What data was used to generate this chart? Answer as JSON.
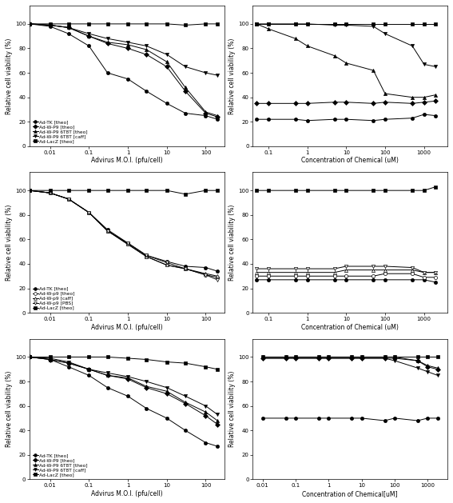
{
  "panel1_left": {
    "xlabel": "Advirus M.O.I. (pfu/cell)",
    "ylabel": "Relative cell viability (%)",
    "xlim": [
      0.003,
      300
    ],
    "ylim": [
      0,
      115
    ],
    "yticks": [
      0,
      20,
      40,
      60,
      80,
      100
    ],
    "xticks": [
      0.01,
      0.1,
      1,
      10,
      100
    ],
    "xticklabels": [
      "0.01",
      "0.1",
      "1",
      "10",
      "100"
    ],
    "series": [
      {
        "label": "Ad-TK [theo]",
        "marker": "o",
        "filled": true,
        "x": [
          0.001,
          0.003,
          0.01,
          0.03,
          0.1,
          0.3,
          1,
          3,
          10,
          30,
          100,
          200
        ],
        "y": [
          100,
          100,
          98,
          92,
          82,
          60,
          55,
          45,
          35,
          27,
          25,
          22
        ]
      },
      {
        "label": "Ad-W-P9 [theo]",
        "marker": "D",
        "filled": true,
        "x": [
          0.001,
          0.003,
          0.01,
          0.03,
          0.1,
          0.3,
          1,
          3,
          10,
          30,
          100,
          200
        ],
        "y": [
          100,
          100,
          99,
          97,
          90,
          84,
          80,
          75,
          65,
          45,
          27,
          24
        ]
      },
      {
        "label": "Ad-W-P9 6T8T [theo]",
        "marker": "^",
        "filled": true,
        "x": [
          0.001,
          0.003,
          0.01,
          0.03,
          0.1,
          0.3,
          1,
          3,
          10,
          30,
          100,
          200
        ],
        "y": [
          100,
          100,
          99,
          97,
          90,
          85,
          83,
          79,
          69,
          48,
          28,
          25
        ]
      },
      {
        "label": "Ad-W-P9 6T8T [caff]",
        "marker": "v",
        "filled": true,
        "x": [
          0.001,
          0.003,
          0.01,
          0.03,
          0.1,
          0.3,
          1,
          3,
          10,
          30,
          100,
          200
        ],
        "y": [
          100,
          100,
          99,
          97,
          92,
          88,
          85,
          82,
          75,
          65,
          60,
          58
        ]
      },
      {
        "label": "Ad-LacZ [theo]",
        "marker": "s",
        "filled": true,
        "x": [
          0.001,
          0.003,
          0.01,
          0.03,
          0.1,
          0.3,
          1,
          3,
          10,
          30,
          100,
          200
        ],
        "y": [
          100,
          100,
          100,
          100,
          100,
          100,
          100,
          100,
          100,
          99,
          100,
          100
        ]
      }
    ]
  },
  "panel1_right": {
    "xlabel": "Concentration of Chemical (uM)",
    "ylabel": "Relative cell viability (%)",
    "xlim": [
      0.04,
      4000
    ],
    "ylim": [
      0,
      115
    ],
    "yticks": [
      0,
      20,
      40,
      60,
      80,
      100
    ],
    "xticks": [
      0.1,
      1,
      10,
      100,
      1000
    ],
    "xticklabels": [
      "0.1",
      "1",
      "10",
      "100",
      "1000"
    ],
    "series": [
      {
        "label": "Ad-TK [theo]",
        "marker": "o",
        "filled": true,
        "x": [
          0.05,
          0.1,
          0.5,
          1,
          5,
          10,
          50,
          100,
          500,
          1000,
          2000
        ],
        "y": [
          22,
          22,
          22,
          21,
          22,
          22,
          21,
          22,
          23,
          26,
          25
        ]
      },
      {
        "label": "Ad-W-P9 [theo]",
        "marker": "D",
        "filled": true,
        "x": [
          0.05,
          0.1,
          0.5,
          1,
          5,
          10,
          50,
          100,
          500,
          1000,
          2000
        ],
        "y": [
          35,
          35,
          35,
          35,
          36,
          36,
          35,
          36,
          35,
          36,
          37
        ]
      },
      {
        "label": "Ad-W-P9 6T8T [theo]",
        "marker": "^",
        "filled": true,
        "x": [
          0.05,
          0.1,
          0.5,
          1,
          5,
          10,
          50,
          100,
          500,
          1000,
          2000
        ],
        "y": [
          100,
          96,
          88,
          82,
          74,
          68,
          62,
          43,
          40,
          40,
          42
        ]
      },
      {
        "label": "Ad-W-P9 6T8T [caff]",
        "marker": "v",
        "filled": true,
        "x": [
          0.05,
          0.1,
          0.5,
          1,
          5,
          10,
          50,
          100,
          500,
          1000,
          2000
        ],
        "y": [
          100,
          100,
          100,
          100,
          99,
          99,
          98,
          92,
          82,
          67,
          65
        ]
      },
      {
        "label": "Ad-LacZ [theo]",
        "marker": "s",
        "filled": true,
        "x": [
          0.05,
          0.1,
          0.5,
          1,
          5,
          10,
          50,
          100,
          500,
          1000,
          2000
        ],
        "y": [
          100,
          100,
          100,
          100,
          100,
          100,
          100,
          100,
          100,
          100,
          100
        ]
      }
    ]
  },
  "panel2_left": {
    "xlabel": "Advirus M.O.I. (pfu/cell)",
    "ylabel": "Relative cell viability (%)",
    "xlim": [
      0.003,
      300
    ],
    "ylim": [
      0,
      115
    ],
    "yticks": [
      0,
      20,
      40,
      60,
      80,
      100
    ],
    "xticks": [
      0.01,
      0.1,
      1,
      10,
      100
    ],
    "xticklabels": [
      "0.01",
      "0.1",
      "1",
      "10",
      "100"
    ],
    "series": [
      {
        "label": "Ad-TK [theo]",
        "marker": "o",
        "filled": true,
        "x": [
          0.001,
          0.003,
          0.01,
          0.03,
          0.1,
          0.3,
          1,
          3,
          10,
          30,
          100,
          200
        ],
        "y": [
          100,
          100,
          98,
          93,
          82,
          68,
          57,
          47,
          42,
          38,
          37,
          34
        ]
      },
      {
        "label": "Ad-W-p9 [theo]",
        "marker": "o",
        "filled": false,
        "x": [
          0.001,
          0.003,
          0.01,
          0.03,
          0.1,
          0.3,
          1,
          3,
          10,
          30,
          100,
          200
        ],
        "y": [
          100,
          100,
          98,
          93,
          82,
          67,
          56,
          46,
          39,
          36,
          31,
          29
        ]
      },
      {
        "label": "Ad-W-p9 [caff]",
        "marker": "^",
        "filled": false,
        "x": [
          0.001,
          0.003,
          0.01,
          0.03,
          0.1,
          0.3,
          1,
          3,
          10,
          30,
          100,
          200
        ],
        "y": [
          100,
          100,
          98,
          93,
          82,
          67,
          56,
          46,
          39,
          36,
          32,
          30
        ]
      },
      {
        "label": "Ad-W-p9 [PBS]",
        "marker": "v",
        "filled": false,
        "x": [
          0.001,
          0.003,
          0.01,
          0.03,
          0.1,
          0.3,
          1,
          3,
          10,
          30,
          100,
          200
        ],
        "y": [
          100,
          100,
          98,
          93,
          82,
          67,
          57,
          47,
          41,
          36,
          31,
          27
        ]
      },
      {
        "label": "Ad-LacZ [theo]",
        "marker": "s",
        "filled": true,
        "x": [
          0.001,
          0.003,
          0.01,
          0.03,
          0.1,
          0.3,
          1,
          3,
          10,
          30,
          100,
          200
        ],
        "y": [
          100,
          100,
          100,
          100,
          100,
          100,
          100,
          100,
          100,
          97,
          100,
          100
        ]
      }
    ]
  },
  "panel2_right": {
    "xlabel": "Concentration of Chemical (uM)",
    "ylabel": "Relative cell viability (%)",
    "xlim": [
      0.04,
      4000
    ],
    "ylim": [
      0,
      115
    ],
    "yticks": [
      0,
      20,
      40,
      60,
      80,
      100
    ],
    "xticks": [
      0.1,
      1,
      10,
      100,
      1000
    ],
    "xticklabels": [
      "0.1",
      "1",
      "10",
      "100",
      "1000"
    ],
    "series": [
      {
        "label": "Ad-TK [theo]",
        "marker": "o",
        "filled": true,
        "x": [
          0.05,
          0.1,
          0.5,
          1,
          5,
          10,
          50,
          100,
          500,
          1000,
          2000
        ],
        "y": [
          27,
          27,
          27,
          27,
          27,
          27,
          27,
          27,
          27,
          27,
          25
        ]
      },
      {
        "label": "Ad-W-p9 [theo]",
        "marker": "o",
        "filled": false,
        "x": [
          0.05,
          0.1,
          0.5,
          1,
          5,
          10,
          50,
          100,
          500,
          1000,
          2000
        ],
        "y": [
          30,
          30,
          30,
          30,
          30,
          30,
          30,
          32,
          32,
          29,
          29
        ]
      },
      {
        "label": "Ad-W-p9 [caff]",
        "marker": "^",
        "filled": false,
        "x": [
          0.05,
          0.1,
          0.5,
          1,
          5,
          10,
          50,
          100,
          500,
          1000,
          2000
        ],
        "y": [
          33,
          33,
          33,
          33,
          33,
          35,
          35,
          35,
          35,
          33,
          33
        ]
      },
      {
        "label": "Ad-W-p9 [PBS]",
        "marker": "v",
        "filled": false,
        "x": [
          0.05,
          0.1,
          0.5,
          1,
          5,
          10,
          50,
          100,
          500,
          1000,
          2000
        ],
        "y": [
          36,
          36,
          36,
          36,
          36,
          38,
          38,
          38,
          37,
          33,
          33
        ]
      },
      {
        "label": "Ad-LacZ [theo]",
        "marker": "s",
        "filled": true,
        "x": [
          0.05,
          0.1,
          0.5,
          1,
          5,
          10,
          50,
          100,
          500,
          1000,
          2000
        ],
        "y": [
          100,
          100,
          100,
          100,
          100,
          100,
          100,
          100,
          100,
          100,
          103
        ]
      }
    ]
  },
  "panel3_left": {
    "xlabel": "Advirus M.O.I. (pfu/cell)",
    "ylabel": "Relative cell viability (%)",
    "xlim": [
      0.003,
      300
    ],
    "ylim": [
      0,
      115
    ],
    "yticks": [
      0,
      20,
      40,
      60,
      80,
      100
    ],
    "xticks": [
      0.01,
      0.1,
      1,
      10,
      100
    ],
    "xticklabels": [
      "0.01",
      "0.1",
      "1",
      "10",
      "100"
    ],
    "series": [
      {
        "label": "Ad-TK [theo]",
        "marker": "o",
        "filled": true,
        "x": [
          0.001,
          0.003,
          0.01,
          0.03,
          0.1,
          0.3,
          1,
          3,
          10,
          30,
          100,
          200
        ],
        "y": [
          100,
          100,
          98,
          92,
          85,
          75,
          68,
          58,
          50,
          40,
          30,
          27
        ]
      },
      {
        "label": "Ad-W-P9 [theo]",
        "marker": "D",
        "filled": true,
        "x": [
          0.001,
          0.003,
          0.01,
          0.03,
          0.1,
          0.3,
          1,
          3,
          10,
          30,
          100,
          200
        ],
        "y": [
          100,
          100,
          98,
          95,
          90,
          85,
          82,
          75,
          70,
          62,
          52,
          45
        ]
      },
      {
        "label": "Ad-W-P9 6T8T [theo]",
        "marker": "^",
        "filled": true,
        "x": [
          0.001,
          0.003,
          0.01,
          0.03,
          0.1,
          0.3,
          1,
          3,
          10,
          30,
          100,
          200
        ],
        "y": [
          100,
          100,
          98,
          95,
          90,
          85,
          83,
          76,
          72,
          63,
          55,
          48
        ]
      },
      {
        "label": "Ad-W-P9 6T8T [caff]",
        "marker": "v",
        "filled": true,
        "x": [
          0.001,
          0.003,
          0.01,
          0.03,
          0.1,
          0.3,
          1,
          3,
          10,
          30,
          100,
          200
        ],
        "y": [
          100,
          100,
          99,
          96,
          90,
          87,
          84,
          80,
          75,
          68,
          60,
          53
        ]
      },
      {
        "label": "Ad-LacZ [theo]",
        "marker": "s",
        "filled": true,
        "x": [
          0.001,
          0.003,
          0.01,
          0.03,
          0.1,
          0.3,
          1,
          3,
          10,
          30,
          100,
          200
        ],
        "y": [
          100,
          100,
          100,
          100,
          100,
          100,
          99,
          98,
          96,
          95,
          92,
          90
        ]
      }
    ]
  },
  "panel3_right": {
    "xlabel": "Concentration of Chemical[uM]",
    "ylabel": "Relative cell viability (%)",
    "xlim": [
      0.005,
      4000
    ],
    "ylim": [
      0,
      115
    ],
    "yticks": [
      0,
      20,
      40,
      60,
      80,
      100
    ],
    "xticks": [
      0.01,
      0.1,
      1,
      10,
      100,
      1000
    ],
    "xticklabels": [
      "0.01",
      "0.1",
      "1",
      "10",
      "100",
      "1000"
    ],
    "series": [
      {
        "label": "Ad-TK [theo]",
        "marker": "o",
        "filled": true,
        "x": [
          0.01,
          0.05,
          0.1,
          0.5,
          1,
          5,
          10,
          50,
          100,
          500,
          1000,
          2000
        ],
        "y": [
          50,
          50,
          50,
          50,
          50,
          50,
          50,
          48,
          50,
          48,
          50,
          50
        ]
      },
      {
        "label": "Ad-W-P9 [theo]",
        "marker": "D",
        "filled": true,
        "x": [
          0.01,
          0.05,
          0.1,
          0.5,
          1,
          5,
          10,
          50,
          100,
          500,
          1000,
          2000
        ],
        "y": [
          99,
          99,
          99,
          99,
          99,
          99,
          99,
          99,
          99,
          97,
          92,
          90
        ]
      },
      {
        "label": "Ad-W-P9 6T8T [theo]",
        "marker": "^",
        "filled": true,
        "x": [
          0.01,
          0.05,
          0.1,
          0.5,
          1,
          5,
          10,
          50,
          100,
          500,
          1000,
          2000
        ],
        "y": [
          100,
          100,
          100,
          100,
          100,
          100,
          100,
          100,
          100,
          97,
          93,
          91
        ]
      },
      {
        "label": "Ad-W-P9 6T8T [caff]",
        "marker": "v",
        "filled": true,
        "x": [
          0.01,
          0.05,
          0.1,
          0.5,
          1,
          5,
          10,
          50,
          100,
          500,
          1000,
          2000
        ],
        "y": [
          99,
          99,
          99,
          99,
          99,
          99,
          99,
          99,
          97,
          91,
          88,
          85
        ]
      },
      {
        "label": "Ad-LacZ [theo]",
        "marker": "s",
        "filled": true,
        "x": [
          0.01,
          0.05,
          0.1,
          0.5,
          1,
          5,
          10,
          50,
          100,
          500,
          1000,
          2000
        ],
        "y": [
          100,
          100,
          100,
          100,
          100,
          100,
          100,
          100,
          100,
          100,
          100,
          100
        ]
      }
    ]
  }
}
